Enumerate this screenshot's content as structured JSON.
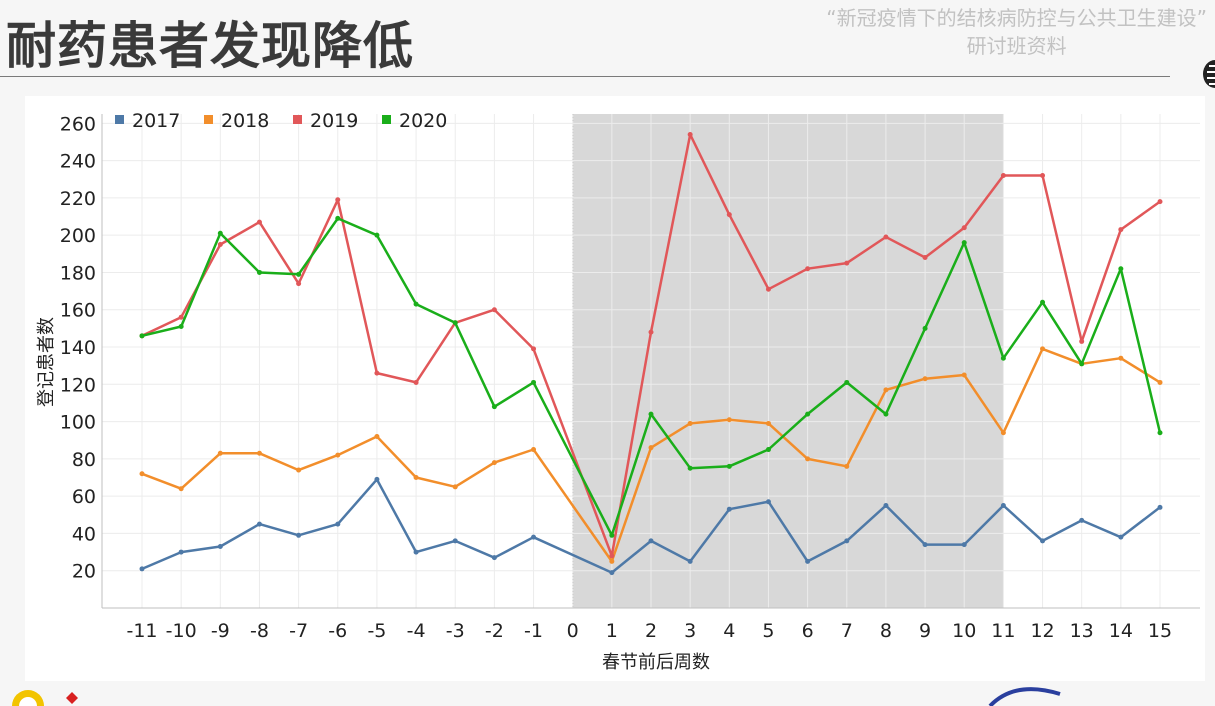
{
  "slide": {
    "title": "耐药患者发现降低",
    "subtitle_line1": "“新冠疫情下的结核病防控与公共卫生建设”",
    "subtitle_line2": "研讨班资料"
  },
  "chart_data": {
    "type": "line",
    "title": "",
    "xlabel": "春节前后周数",
    "ylabel": "登记患者数",
    "x": [
      -11,
      -10,
      -9,
      -8,
      -7,
      -6,
      -5,
      -4,
      -3,
      -2,
      -1,
      0,
      1,
      2,
      3,
      4,
      5,
      6,
      7,
      8,
      9,
      10,
      11,
      12,
      13,
      14,
      15
    ],
    "ylim": [
      0,
      265
    ],
    "yticks": [
      20,
      40,
      60,
      80,
      100,
      120,
      140,
      160,
      180,
      200,
      220,
      240,
      260
    ],
    "shaded_range": [
      0,
      11
    ],
    "grid": true,
    "legend": "top-left",
    "series": [
      {
        "name": "2017",
        "color": "#4e79a7",
        "values": [
          21,
          30,
          33,
          45,
          39,
          45,
          69,
          30,
          36,
          27,
          38,
          null,
          19,
          36,
          25,
          53,
          57,
          25,
          36,
          55,
          34,
          34,
          55,
          36,
          47,
          38,
          54
        ]
      },
      {
        "name": "2018",
        "color": "#f28e2b",
        "values": [
          72,
          64,
          83,
          83,
          74,
          82,
          92,
          70,
          65,
          78,
          85,
          null,
          25,
          86,
          99,
          101,
          99,
          80,
          76,
          117,
          123,
          125,
          94,
          139,
          131,
          134,
          121
        ]
      },
      {
        "name": "2019",
        "color": "#e15759",
        "values": [
          146,
          156,
          195,
          207,
          174,
          219,
          126,
          121,
          153,
          160,
          139,
          null,
          28,
          148,
          254,
          211,
          171,
          182,
          185,
          199,
          188,
          204,
          232,
          232,
          143,
          203,
          218
        ]
      },
      {
        "name": "2020",
        "color": "#1aae1a",
        "values": [
          146,
          151,
          201,
          180,
          179,
          209,
          200,
          163,
          153,
          108,
          121,
          null,
          39,
          104,
          75,
          76,
          85,
          104,
          121,
          104,
          150,
          196,
          134,
          164,
          131,
          182,
          94
        ]
      }
    ]
  }
}
